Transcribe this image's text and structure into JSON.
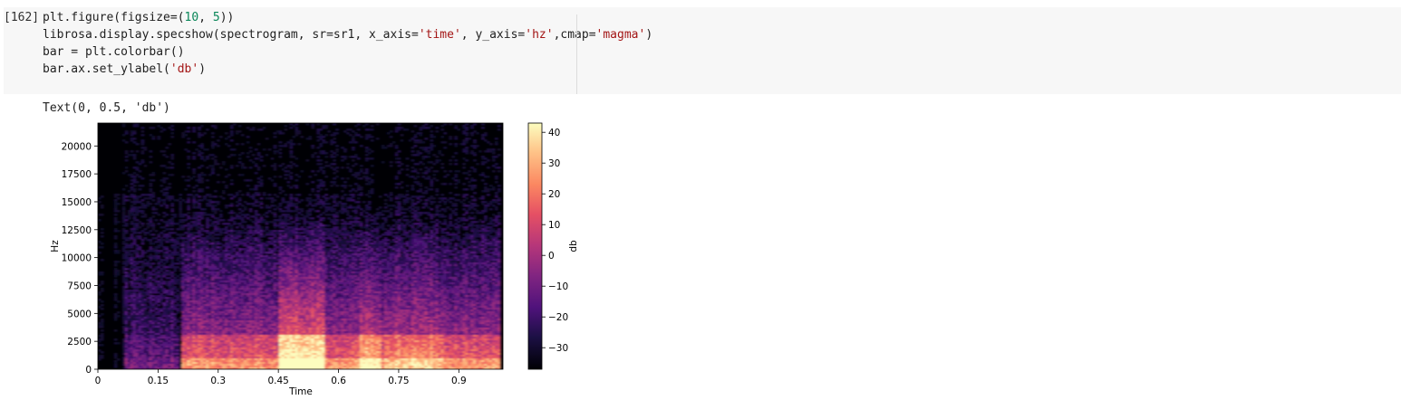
{
  "cell": {
    "prompt": "[162]",
    "code_lines": [
      [
        {
          "t": "plt.figure(figsize=("
        },
        {
          "t": "10",
          "c": "num"
        },
        {
          "t": ", "
        },
        {
          "t": "5",
          "c": "num"
        },
        {
          "t": "))"
        }
      ],
      [
        {
          "t": "librosa.display.specshow(spectrogram, sr=sr1, x_axis="
        },
        {
          "t": "'time'",
          "c": "str"
        },
        {
          "t": ", y_axis="
        },
        {
          "t": "'hz'",
          "c": "str"
        },
        {
          "t": ",cmap="
        },
        {
          "t": "'magma'",
          "c": "str"
        },
        {
          "t": ")"
        }
      ],
      [
        {
          "t": "bar = plt.colorbar()"
        }
      ],
      [
        {
          "t": "bar.ax.set_ylabel("
        },
        {
          "t": "'db'",
          "c": "str"
        },
        {
          "t": ")"
        }
      ]
    ]
  },
  "output": {
    "text": "Text(0, 0.5, 'db')"
  },
  "chart_data": {
    "type": "heatmap",
    "title": "",
    "xlabel": "Time",
    "ylabel": "Hz",
    "colorbar_label": "db",
    "colormap": "magma",
    "x_ticks": [
      "0",
      "0.15",
      "0.3",
      "0.45",
      "0.6",
      "0.75",
      "0.9"
    ],
    "y_ticks": [
      "0",
      "2500",
      "5000",
      "7500",
      "10000",
      "12500",
      "15000",
      "17500",
      "20000"
    ],
    "colorbar_ticks": [
      "40",
      "30",
      "20",
      "10",
      "0",
      "−10",
      "−20",
      "−30"
    ],
    "xlim": [
      0,
      1.01
    ],
    "ylim": [
      0,
      22050
    ],
    "colorbar_range": [
      -37,
      43
    ],
    "colorbar_tick_values": [
      40,
      30,
      20,
      10,
      0,
      -10,
      -20,
      -30
    ]
  }
}
